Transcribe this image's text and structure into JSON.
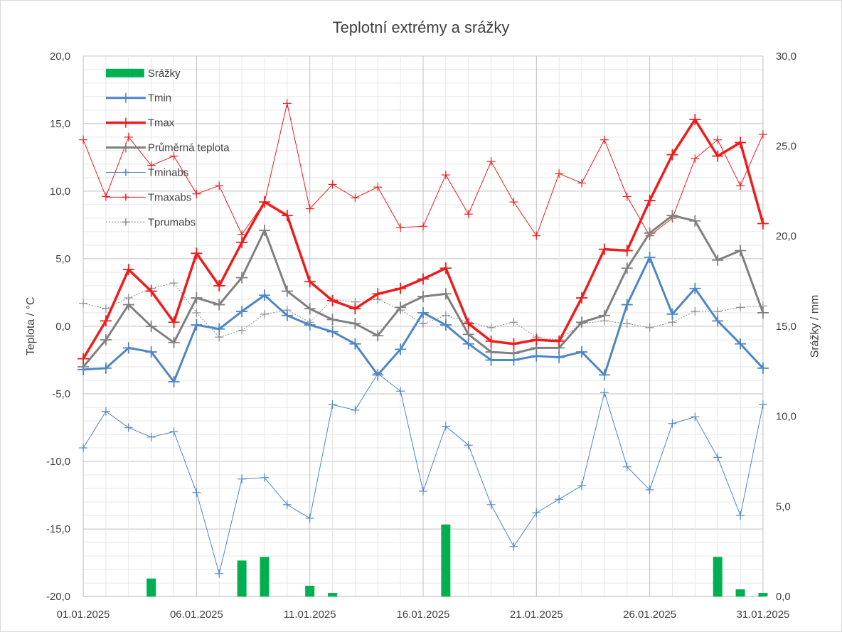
{
  "chart_data": {
    "type": "line",
    "title": "Teplotní extrémy a srážky",
    "ylabel": "Teplota / °C",
    "y2label": "Srážky / mm",
    "ylim": [
      -20,
      20
    ],
    "y2lim": [
      0,
      30
    ],
    "yticks": [
      "-20,0",
      "-15,0",
      "-10,0",
      "-5,0",
      "0,0",
      "5,0",
      "10,0",
      "15,0",
      "20,0"
    ],
    "y2ticks": [
      "0,0",
      "5,0",
      "10,0",
      "15,0",
      "20,0",
      "25,0",
      "30,0"
    ],
    "xticks": [
      "01.01.2025",
      "06.01.2025",
      "11.01.2025",
      "16.01.2025",
      "21.01.2025",
      "26.01.2025",
      "31.01.2025"
    ],
    "days": 31,
    "grid": true,
    "legend_position": "top-left",
    "series": [
      {
        "name": "Srážky",
        "kind": "bar",
        "axis": "right",
        "color": "#00b050",
        "values": [
          0,
          0,
          0,
          1.0,
          0,
          0,
          0,
          2.0,
          2.2,
          0,
          0.6,
          0.2,
          0,
          0,
          0,
          0,
          4.0,
          0,
          0,
          0,
          0,
          0,
          0,
          0,
          0,
          0,
          0,
          0,
          2.2,
          0.4,
          0.2
        ]
      },
      {
        "name": "Tmin",
        "kind": "line",
        "axis": "left",
        "color": "#4e86c6",
        "width": 3,
        "values": [
          -3.2,
          -3.1,
          -1.6,
          -1.9,
          -4.1,
          0.1,
          -0.2,
          1.1,
          2.3,
          0.8,
          0.1,
          -0.4,
          -1.3,
          -3.6,
          -1.7,
          1.0,
          0.1,
          -1.3,
          -2.5,
          -2.5,
          -2.2,
          -2.3,
          -1.9,
          -3.6,
          1.6,
          5.1,
          0.9,
          2.8,
          0.4,
          -1.3,
          -3.1
        ]
      },
      {
        "name": "Tmax",
        "kind": "line",
        "axis": "left",
        "color": "#ee1c1c",
        "width": 3.5,
        "values": [
          -2.4,
          0.4,
          4.2,
          2.6,
          0.3,
          5.4,
          3.0,
          6.2,
          9.2,
          8.2,
          3.3,
          1.9,
          1.3,
          2.4,
          2.8,
          3.5,
          4.3,
          0.2,
          -1.1,
          -1.3,
          -1.0,
          -1.1,
          2.1,
          5.7,
          5.6,
          9.3,
          12.7,
          15.3,
          12.6,
          13.6,
          7.6
        ]
      },
      {
        "name": "Průměrná teplota",
        "kind": "line",
        "axis": "left",
        "color": "#808080",
        "width": 3,
        "values": [
          -3.0,
          -1.0,
          1.6,
          0.0,
          -1.2,
          2.1,
          1.6,
          3.6,
          7.1,
          2.6,
          1.3,
          0.5,
          0.2,
          -0.7,
          1.4,
          2.2,
          2.4,
          -0.6,
          -1.9,
          -2.0,
          -1.6,
          -1.6,
          0.3,
          0.8,
          4.3,
          6.9,
          8.2,
          7.8,
          4.9,
          5.6,
          1.0
        ]
      },
      {
        "name": "Tminabs",
        "kind": "line",
        "axis": "left",
        "color": "#4e86c6",
        "width": 1,
        "values": [
          -9.0,
          -6.3,
          -7.5,
          -8.2,
          -7.8,
          -12.3,
          -18.3,
          -11.3,
          -11.2,
          -13.2,
          -14.2,
          -5.8,
          -6.2,
          -3.5,
          -4.8,
          -12.2,
          -7.4,
          -8.8,
          -13.2,
          -16.3,
          -13.8,
          -12.8,
          -11.8,
          -4.9,
          -10.4,
          -12.1,
          -7.2,
          -6.7,
          -9.7,
          -14.0,
          -5.8
        ]
      },
      {
        "name": "Tmaxabs",
        "kind": "line",
        "axis": "left",
        "color": "#ee1c1c",
        "width": 1,
        "values": [
          13.8,
          9.6,
          14.0,
          11.9,
          12.6,
          9.8,
          10.4,
          6.8,
          9.2,
          16.5,
          8.7,
          10.5,
          9.5,
          10.3,
          7.3,
          7.4,
          11.2,
          8.3,
          12.2,
          9.2,
          6.7,
          11.3,
          10.6,
          13.8,
          9.6,
          6.7,
          8.0,
          12.4,
          13.8,
          10.4,
          14.2
        ]
      },
      {
        "name": "Tprumabs",
        "kind": "line",
        "axis": "left",
        "color": "#8c8c8c",
        "width": 1,
        "dashed": true,
        "values": [
          1.7,
          1.3,
          2.1,
          2.8,
          3.2,
          1.0,
          -0.8,
          -0.3,
          0.9,
          1.2,
          0.3,
          2.0,
          1.8,
          2.0,
          1.2,
          0.2,
          0.8,
          0.3,
          -0.1,
          0.3,
          -0.8,
          -1.0,
          0.2,
          0.4,
          0.2,
          -0.1,
          0.3,
          1.1,
          1.1,
          1.4,
          1.5
        ]
      }
    ]
  }
}
